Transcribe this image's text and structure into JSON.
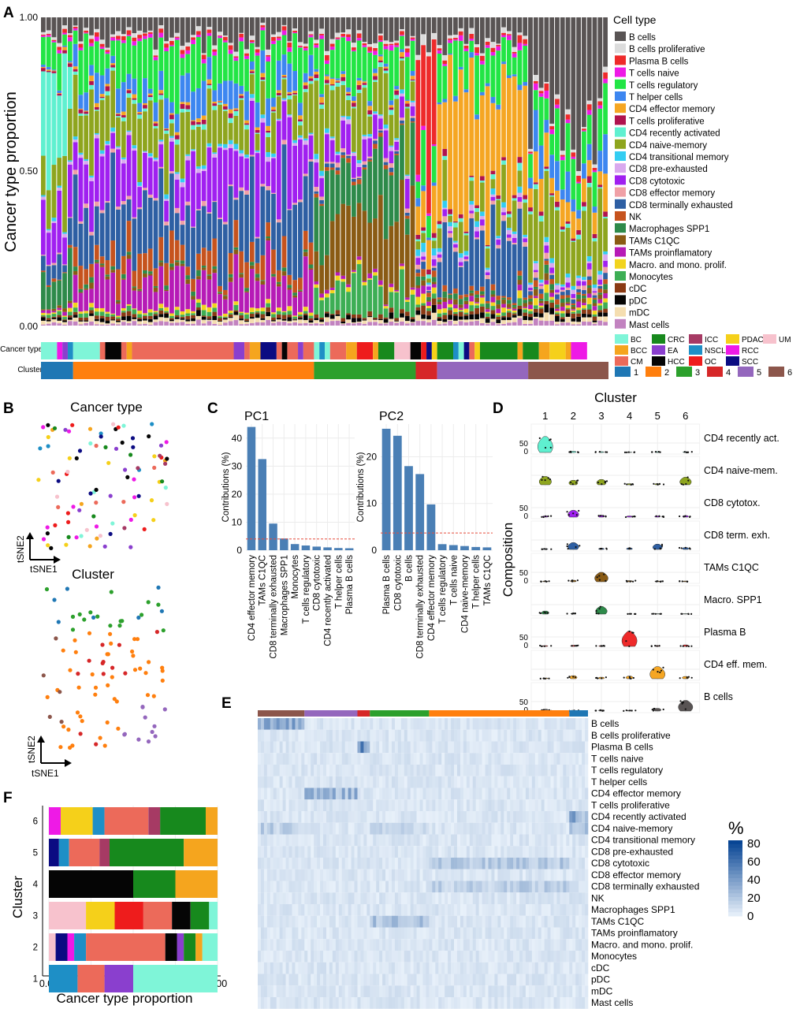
{
  "panel_letters": [
    "A",
    "B",
    "C",
    "D",
    "E",
    "F"
  ],
  "colors": {
    "B cells": "#595454",
    "B cells proliferative": "#dcdcdc",
    "Plasma B cells": "#ee2a2a",
    "T cells naive": "#ee1ae6",
    "T cells regulatory": "#22e545",
    "T helper cells": "#3d86f0",
    "CD4 effector memory": "#f5a623",
    "T cells proliferative": "#b0124e",
    "CD4 recently activated": "#5ff0d0",
    "CD4 naive-memory": "#8ea51e",
    "CD4 transitional memory": "#33cdf2",
    "CD8 pre-exhausted": "#d9a9ee",
    "CD8 cytotoxic": "#a020f0",
    "CD8 effector memory": "#f0a0a6",
    "CD8 terminally exhausted": "#2e5fa3",
    "NK": "#c6531e",
    "Macrophages SPP1": "#2e8a4a",
    "TAMs C1QC": "#8a5b14",
    "TAMs proinflamatory": "#b61bb6",
    "Macro. and mono. prolif.": "#f2d41e",
    "Monocytes": "#3dae55",
    "cDC": "#8a3a14",
    "pDC": "#050505",
    "mDC": "#f5deb0",
    "Mast cells": "#c283c0",
    "BC": "#7ff5d8",
    "BCC": "#f5a51e",
    "CM": "#ec6a5a",
    "CRC": "#17891d",
    "EA": "#8a3fce",
    "HCC": "#050505",
    "ICC": "#a63a64",
    "NSCLC": "#1e8fc6",
    "OC": "#ee1c1c",
    "PDAC": "#f5d01a",
    "RCC": "#ee1ae6",
    "SCC": "#0b0b82",
    "UM": "#f7c2cd",
    "c1": "#1f77b4",
    "c2": "#ff7f0e",
    "c3": "#2ca02c",
    "c4": "#d62728",
    "c5": "#9467bd",
    "c6": "#8c564b"
  },
  "panel_a": {
    "ylabel": "Cancer type proportion",
    "yticks": [
      "0.00",
      "0.50",
      "1.00"
    ],
    "legend_title": "Cell type",
    "legend": [
      "B cells",
      "B cells proliferative",
      "Plasma B cells",
      "T cells naive",
      "T cells regulatory",
      "T helper cells",
      "CD4 effector memory",
      "T cells proliferative",
      "CD4 recently activated",
      "CD4 naive-memory",
      "CD4 transitional memory",
      "CD8 pre-exhausted",
      "CD8 cytotoxic",
      "CD8 effector memory",
      "CD8 terminally exhausted",
      "NK",
      "Macrophages SPP1",
      "TAMs C1QC",
      "TAMs proinflamatory",
      "Macro. and mono. prolif.",
      "Monocytes",
      "cDC",
      "pDC",
      "mDC",
      "Mast cells"
    ],
    "row_labels": [
      "Cancer type",
      "Cluster"
    ],
    "cancer_legend": [
      "BC",
      "BCC",
      "CM",
      "CRC",
      "EA",
      "HCC",
      "ICC",
      "NSCLC",
      "OC",
      "PDAC",
      "RCC",
      "SCC",
      "UM"
    ],
    "cluster_legend": [
      "1",
      "2",
      "3",
      "4",
      "5",
      "6"
    ],
    "cancer_track": [
      [
        "BC",
        3
      ],
      [
        "RCC",
        1
      ],
      [
        "EA",
        1
      ],
      [
        "NSCLC",
        1
      ],
      [
        "BC",
        5
      ],
      [
        "CM",
        1
      ],
      [
        "HCC",
        3
      ],
      [
        "CM",
        1
      ],
      [
        "BCC",
        1
      ],
      [
        "CM",
        19
      ],
      [
        "EA",
        2
      ],
      [
        "CM",
        1
      ],
      [
        "BCC",
        2
      ],
      [
        "SCC",
        3
      ],
      [
        "CM",
        1
      ],
      [
        "HCC",
        1
      ],
      [
        "CM",
        2
      ],
      [
        "EA",
        1
      ],
      [
        "CM",
        2
      ],
      [
        "BC",
        1
      ],
      [
        "NSCLC",
        1
      ],
      [
        "BC",
        1
      ],
      [
        "CM",
        3
      ],
      [
        "BCC",
        2
      ],
      [
        "OC",
        3
      ],
      [
        "BCC",
        1
      ],
      [
        "CRC",
        3
      ],
      [
        "UM",
        3
      ],
      [
        "HCC",
        2
      ],
      [
        "OC",
        1
      ],
      [
        "SCC",
        1
      ],
      [
        "PDAC",
        1
      ],
      [
        "CRC",
        3
      ],
      [
        "NSCLC",
        1
      ],
      [
        "BC",
        1
      ],
      [
        "SCC",
        1
      ],
      [
        "CM",
        1
      ],
      [
        "PDAC",
        1
      ],
      [
        "CRC",
        7
      ],
      [
        "BCC",
        1
      ],
      [
        "CRC",
        3
      ],
      [
        "BCC",
        2
      ],
      [
        "PDAC",
        3
      ],
      [
        "BCC",
        1
      ],
      [
        "RCC",
        3
      ]
    ],
    "cluster_track": [
      [
        "1",
        6
      ],
      [
        "2",
        45
      ],
      [
        "3",
        19
      ],
      [
        "4",
        4
      ],
      [
        "5",
        17
      ],
      [
        "6",
        15
      ]
    ]
  },
  "panel_b": {
    "title1": "Cancer type",
    "title2": "Cluster",
    "xlabel": "tSNE1",
    "ylabel": "tSNE2"
  },
  "panel_c": {
    "ylabel": "Contributions (%)",
    "charts": [
      {
        "title": "PC1",
        "labels": [
          "CD4 effector memory",
          "TAMs C1QC",
          "CD8 terminally exhausted",
          "Macrophages SPP1",
          "Monocytes",
          "T cells regulatory",
          "CD8 cytotoxic",
          "CD4 recently activated",
          "T helper cells",
          "Plasma B cells"
        ],
        "values": [
          44,
          32.5,
          9.5,
          4.2,
          2.2,
          1.7,
          1.3,
          1.0,
          0.8,
          0.7
        ],
        "yticks": [
          0,
          10,
          20,
          30,
          40
        ],
        "ymax": 45,
        "threshold": 4
      },
      {
        "title": "PC2",
        "labels": [
          "Plasma B cells",
          "CD8 cytotoxic",
          "B cells",
          "CD8 terminally exhausted",
          "CD4 effector memory",
          "T cells regulatory",
          "T cells naive",
          "CD4 naive-memory",
          "T helper cells",
          "TAMs C1QC"
        ],
        "values": [
          26,
          24.5,
          18,
          16.3,
          9.8,
          1.3,
          1.1,
          0.9,
          0.7,
          0.6
        ],
        "yticks": [
          0,
          10,
          20
        ],
        "ymax": 27,
        "threshold": 3.7
      }
    ]
  },
  "panel_d": {
    "title": "Cluster",
    "ylabel": "Composition",
    "cols": [
      "1",
      "2",
      "3",
      "4",
      "5",
      "6"
    ],
    "rows": [
      {
        "label": "CD4 recently act.",
        "color": "#5ff0d0",
        "peak": [
          42,
          3,
          2,
          1,
          2,
          2
        ]
      },
      {
        "label": "CD4 naive-mem.",
        "color": "#8ea51e",
        "peak": [
          22,
          12,
          14,
          3,
          3,
          20
        ]
      },
      {
        "label": "CD8 cytotox.",
        "color": "#a020f0",
        "peak": [
          3,
          18,
          5,
          3,
          3,
          4
        ]
      },
      {
        "label": "CD8 term. exh.",
        "color": "#2e5fa3",
        "peak": [
          2,
          18,
          3,
          4,
          14,
          5
        ]
      },
      {
        "label": "TAMs C1QC",
        "color": "#8a5b14",
        "peak": [
          2,
          4,
          25,
          3,
          2,
          2
        ]
      },
      {
        "label": "Macro. SPP1",
        "color": "#2e8a4a",
        "peak": [
          8,
          2,
          20,
          1,
          1,
          1
        ]
      },
      {
        "label": "Plasma B",
        "color": "#ee2a2a",
        "peak": [
          2,
          3,
          2,
          40,
          2,
          4
        ]
      },
      {
        "label": "CD4 eff. mem.",
        "color": "#f5a623",
        "peak": [
          2,
          8,
          4,
          7,
          32,
          6
        ]
      },
      {
        "label": "B cells",
        "color": "#595454",
        "peak": [
          5,
          2,
          3,
          2,
          7,
          28
        ]
      }
    ],
    "yticks": [
      "0",
      "50"
    ]
  },
  "panel_e": {
    "rows": [
      "B cells",
      "B cells proliferative",
      "Plasma B cells",
      "T cells naive",
      "T cells regulatory",
      "T helper cells",
      "CD4 effector memory",
      "T cells proliferative",
      "CD4 recently activated",
      "CD4 naive-memory",
      "CD4 transitional memory",
      "CD8 pre-exhausted",
      "CD8 cytotoxic",
      "CD8 effector memory",
      "CD8 terminally exhausted",
      "NK",
      "Macrophages SPP1",
      "TAMs C1QC",
      "TAMs proinflamatory",
      "Macro. and mono. prolif.",
      "Monocytes",
      "cDC",
      "pDC",
      "mDC",
      "Mast cells"
    ],
    "legend_title": "%",
    "legend_ticks": [
      "80",
      "60",
      "40",
      "20",
      "0"
    ],
    "cluster_bar": [
      [
        "6",
        15
      ],
      [
        "5",
        17
      ],
      [
        "4",
        4
      ],
      [
        "3",
        19
      ],
      [
        "2",
        45
      ],
      [
        "1",
        6
      ]
    ]
  },
  "panel_f": {
    "ylabel": "Cluster",
    "xlabel": "Cancer type proportion",
    "xticks": [
      "0.00",
      "0.25",
      "0.50",
      "0.75",
      "1.00"
    ],
    "rows": [
      {
        "cluster": "6",
        "segments": [
          [
            "RCC",
            0.07
          ],
          [
            "PDAC",
            0.19
          ],
          [
            "NSCLC",
            0.07
          ],
          [
            "CM",
            0.26
          ],
          [
            "ICC",
            0.07
          ],
          [
            "CRC",
            0.27
          ],
          [
            "BCC",
            0.07
          ]
        ]
      },
      {
        "cluster": "5",
        "segments": [
          [
            "SCC",
            0.06
          ],
          [
            "NSCLC",
            0.06
          ],
          [
            "CM",
            0.18
          ],
          [
            "ICC",
            0.06
          ],
          [
            "CRC",
            0.44
          ],
          [
            "BCC",
            0.2
          ]
        ]
      },
      {
        "cluster": "4",
        "segments": [
          [
            "HCC",
            0.5
          ],
          [
            "CRC",
            0.25
          ],
          [
            "BCC",
            0.25
          ]
        ]
      },
      {
        "cluster": "3",
        "segments": [
          [
            "UM",
            0.22
          ],
          [
            "PDAC",
            0.17
          ],
          [
            "OC",
            0.17
          ],
          [
            "CM",
            0.17
          ],
          [
            "HCC",
            0.11
          ],
          [
            "CRC",
            0.11
          ],
          [
            "BC",
            0.05
          ]
        ]
      },
      {
        "cluster": "2",
        "segments": [
          [
            "UM",
            0.04
          ],
          [
            "SCC",
            0.07
          ],
          [
            "RCC",
            0.04
          ],
          [
            "NSCLC",
            0.07
          ],
          [
            "CM",
            0.47
          ],
          [
            "HCC",
            0.07
          ],
          [
            "EA",
            0.04
          ],
          [
            "CRC",
            0.07
          ],
          [
            "BCC",
            0.04
          ],
          [
            "BC",
            0.09
          ]
        ]
      },
      {
        "cluster": "1",
        "segments": [
          [
            "NSCLC",
            0.17
          ],
          [
            "CM",
            0.16
          ],
          [
            "EA",
            0.17
          ],
          [
            "BC",
            0.5
          ]
        ]
      }
    ]
  }
}
